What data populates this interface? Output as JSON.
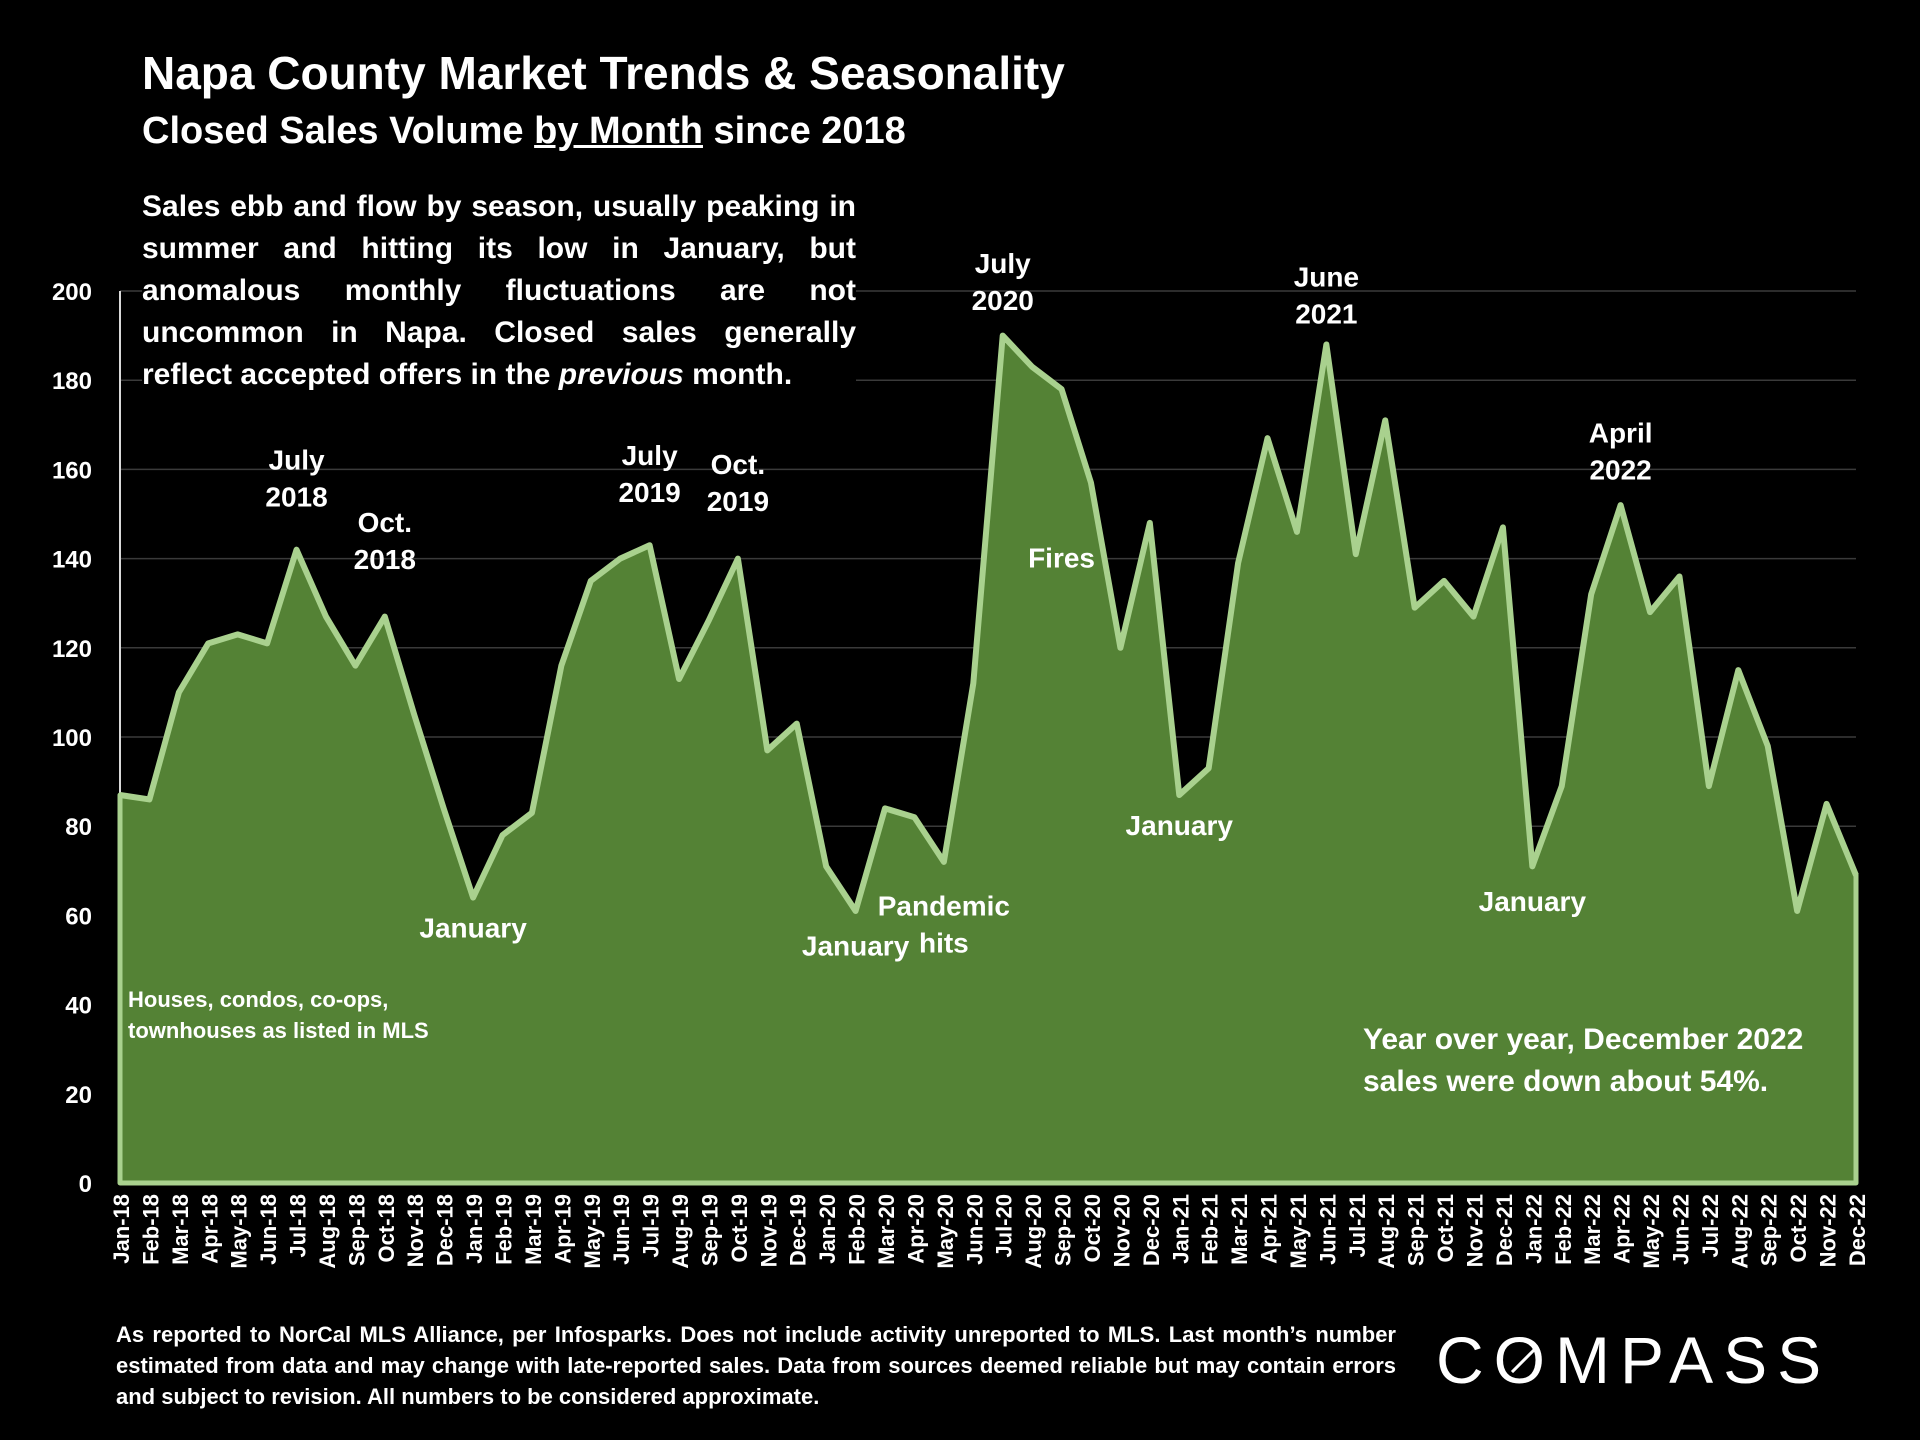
{
  "header": {
    "title": "Napa County Market Trends & Seasonality",
    "subtitle_pre": "Closed Sales Volume ",
    "subtitle_underlined": "by Month",
    "subtitle_post": " since 2018"
  },
  "description": {
    "part1": "Sales ebb and flow by season, usually peaking in summer and hitting its low in January, but anomalous monthly fluctuations are not uncommon in Napa. Closed sales generally reflect accepted offers in the ",
    "italic": "previous",
    "part2": " month."
  },
  "footnote": "As reported to NorCal MLS Alliance, per Infosparks. Does not include activity unreported to MLS. Last month’s number estimated from data and may change with late-reported sales. Data from sources deemed reliable but may contain errors and subject to revision.  All numbers to be considered approximate.",
  "logo": {
    "pre": "C",
    "o": "O",
    "post": "MPASS"
  },
  "chart_data": {
    "type": "area",
    "title": "Napa County Market Trends & Seasonality",
    "subtitle": "Closed Sales Volume by Month since 2018",
    "xlabel": "",
    "ylabel": "",
    "ylim": [
      0,
      200
    ],
    "yticks": [
      0,
      20,
      40,
      60,
      80,
      100,
      120,
      140,
      160,
      180,
      200
    ],
    "grid": true,
    "colors": {
      "fill": "#548235",
      "line": "#A9D18E",
      "grid": "#3a3a3a",
      "text": "#ffffff"
    },
    "categories": [
      "Jan-18",
      "Feb-18",
      "Mar-18",
      "Apr-18",
      "May-18",
      "Jun-18",
      "Jul-18",
      "Aug-18",
      "Sep-18",
      "Oct-18",
      "Nov-18",
      "Dec-18",
      "Jan-19",
      "Feb-19",
      "Mar-19",
      "Apr-19",
      "May-19",
      "Jun-19",
      "Jul-19",
      "Aug-19",
      "Sep-19",
      "Oct-19",
      "Nov-19",
      "Dec-19",
      "Jan-20",
      "Feb-20",
      "Mar-20",
      "Apr-20",
      "May-20",
      "Jun-20",
      "Jul-20",
      "Aug-20",
      "Sep-20",
      "Oct-20",
      "Nov-20",
      "Dec-20",
      "Jan-21",
      "Feb-21",
      "Mar-21",
      "Apr-21",
      "May-21",
      "Jun-21",
      "Jul-21",
      "Aug-21",
      "Sep-21",
      "Oct-21",
      "Nov-21",
      "Dec-21",
      "Jan-22",
      "Feb-22",
      "Mar-22",
      "Apr-22",
      "May-22",
      "Jun-22",
      "Jul-22",
      "Aug-22",
      "Sep-22",
      "Oct-22",
      "Nov-22",
      "Dec-22"
    ],
    "series": [
      {
        "name": "Closed Sales",
        "values": [
          87,
          86,
          110,
          121,
          123,
          121,
          142,
          127,
          116,
          127,
          105,
          84,
          64,
          78,
          83,
          116,
          135,
          140,
          143,
          113,
          126,
          140,
          97,
          103,
          71,
          61,
          84,
          82,
          72,
          112,
          190,
          183,
          178,
          157,
          120,
          148,
          87,
          93,
          139,
          167,
          146,
          188,
          141,
          171,
          129,
          135,
          127,
          147,
          71,
          89,
          132,
          152,
          128,
          136,
          89,
          115,
          98,
          61,
          85,
          69
        ]
      }
    ],
    "annotations": [
      {
        "lines": [
          "July",
          "2018"
        ],
        "x": "Jul-18",
        "y": 160
      },
      {
        "lines": [
          "Oct.",
          "2018"
        ],
        "x": "Oct-18",
        "y": 146
      },
      {
        "lines": [
          "January"
        ],
        "x": "Jan-19",
        "y": 55
      },
      {
        "lines": [
          "July",
          "2019"
        ],
        "x": "Jul-19",
        "y": 161
      },
      {
        "lines": [
          "Oct.",
          "2019"
        ],
        "x": "Oct-19",
        "y": 159
      },
      {
        "lines": [
          "January"
        ],
        "x": "Feb-20",
        "y": 51
      },
      {
        "lines": [
          "Pandemic",
          "hits"
        ],
        "x": "May-20",
        "y": 60
      },
      {
        "lines": [
          "July",
          "2020"
        ],
        "x": "Jul-20",
        "y": 204
      },
      {
        "lines": [
          "Fires"
        ],
        "x": "Sep-20",
        "y": 138
      },
      {
        "lines": [
          "January"
        ],
        "x": "Jan-21",
        "y": 78
      },
      {
        "lines": [
          "June",
          "2021"
        ],
        "x": "Jun-21",
        "y": 201
      },
      {
        "lines": [
          "January"
        ],
        "x": "Jan-22",
        "y": 61
      },
      {
        "lines": [
          "April",
          "2022"
        ],
        "x": "Apr-22",
        "y": 166
      }
    ],
    "notes": [
      {
        "lines": [
          "Houses, condos, co-ops,",
          "townhouses as listed in MLS"
        ]
      },
      {
        "lines": [
          "Year over year, December 2022",
          "sales were down about 54%."
        ]
      }
    ]
  }
}
